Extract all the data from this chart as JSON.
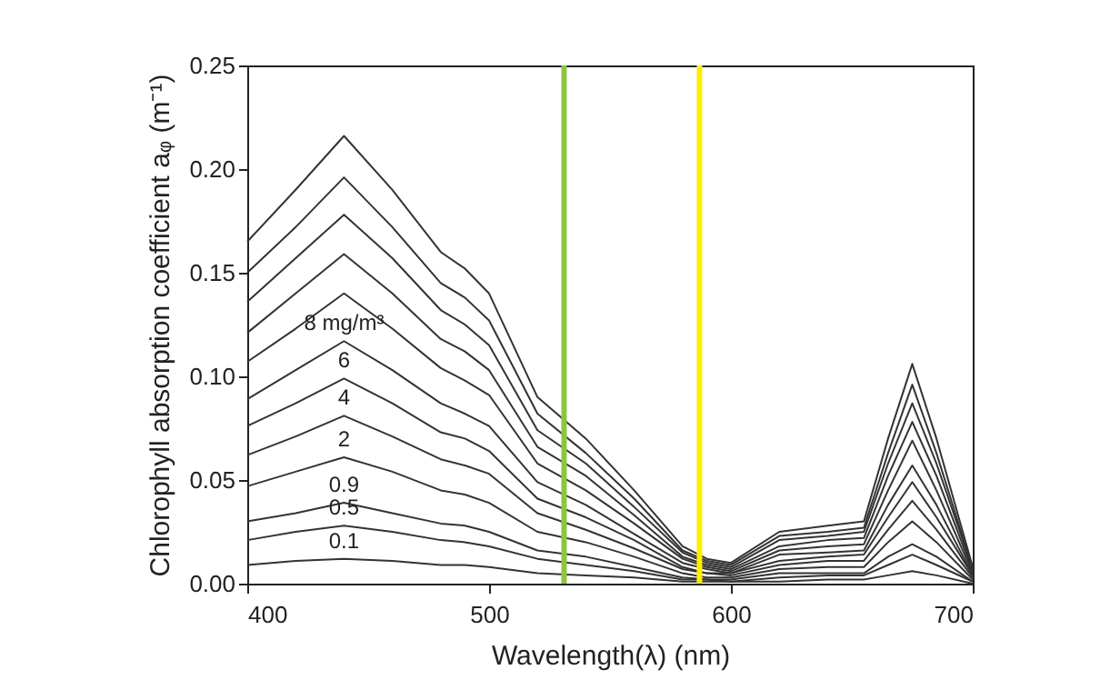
{
  "chart_data": {
    "type": "line",
    "xlabel": "Wavelength(λ) (nm)",
    "ylabel": "Chlorophyll absorption coefficient aᵩ (m⁻¹)",
    "x": [
      400,
      420,
      440,
      460,
      480,
      490,
      500,
      520,
      540,
      560,
      580,
      590,
      600,
      620,
      640,
      655,
      665,
      675,
      685,
      700
    ],
    "xlim": [
      400,
      700
    ],
    "xticks": [
      400,
      500,
      600,
      700
    ],
    "ylim": [
      0,
      0.25
    ],
    "yticks": [
      {
        "value": 0,
        "label": "0.00"
      },
      {
        "value": 0.05,
        "label": "0.05"
      },
      {
        "value": 0.1,
        "label": "0.10"
      },
      {
        "value": 0.15,
        "label": "0.15"
      },
      {
        "value": 0.2,
        "label": "0.20"
      },
      {
        "value": 0.25,
        "label": "0.25"
      }
    ],
    "grid": false,
    "legend": false,
    "marker": "none",
    "line_style": "solid",
    "series": [
      {
        "color": "#333333",
        "values": [
          0.165,
          0.19,
          0.216,
          0.19,
          0.16,
          0.152,
          0.14,
          0.09,
          0.07,
          0.045,
          0.018,
          0.012,
          0.01,
          0.025,
          0.028,
          0.03,
          0.07,
          0.106,
          0.07,
          0.008
        ]
      },
      {
        "color": "#333333",
        "values": [
          0.15,
          0.172,
          0.196,
          0.172,
          0.145,
          0.138,
          0.127,
          0.082,
          0.063,
          0.041,
          0.016,
          0.011,
          0.009,
          0.023,
          0.025,
          0.027,
          0.063,
          0.096,
          0.063,
          0.007
        ]
      },
      {
        "color": "#333333",
        "values": [
          0.136,
          0.157,
          0.178,
          0.157,
          0.132,
          0.125,
          0.115,
          0.074,
          0.058,
          0.037,
          0.015,
          0.01,
          0.008,
          0.021,
          0.023,
          0.025,
          0.058,
          0.087,
          0.058,
          0.007
        ]
      },
      {
        "color": "#333333",
        "values": [
          0.121,
          0.14,
          0.159,
          0.14,
          0.118,
          0.112,
          0.103,
          0.066,
          0.052,
          0.033,
          0.013,
          0.009,
          0.007,
          0.018,
          0.021,
          0.022,
          0.052,
          0.078,
          0.052,
          0.006
        ]
      },
      {
        "color": "#333333",
        "values": [
          0.107,
          0.123,
          0.14,
          0.123,
          0.104,
          0.098,
          0.091,
          0.058,
          0.045,
          0.029,
          0.012,
          0.008,
          0.006,
          0.016,
          0.018,
          0.019,
          0.045,
          0.069,
          0.045,
          0.005
        ]
      },
      {
        "name": "8 mg/m³",
        "color": "#333333",
        "values": [
          0.089,
          0.103,
          0.117,
          0.103,
          0.087,
          0.082,
          0.076,
          0.049,
          0.038,
          0.024,
          0.01,
          0.007,
          0.005,
          0.014,
          0.015,
          0.016,
          0.038,
          0.057,
          0.038,
          0.004
        ]
      },
      {
        "name": "6",
        "color": "#333333",
        "values": [
          0.076,
          0.087,
          0.099,
          0.087,
          0.073,
          0.07,
          0.064,
          0.041,
          0.032,
          0.021,
          0.008,
          0.005,
          0.005,
          0.011,
          0.013,
          0.014,
          0.032,
          0.049,
          0.032,
          0.004
        ]
      },
      {
        "name": "4",
        "color": "#333333",
        "values": [
          0.062,
          0.071,
          0.081,
          0.071,
          0.06,
          0.057,
          0.053,
          0.034,
          0.026,
          0.017,
          0.007,
          0.005,
          0.004,
          0.009,
          0.011,
          0.011,
          0.026,
          0.04,
          0.026,
          0.003
        ]
      },
      {
        "name": "2",
        "color": "#333333",
        "values": [
          0.047,
          0.054,
          0.061,
          0.054,
          0.045,
          0.043,
          0.039,
          0.025,
          0.02,
          0.013,
          0.005,
          0.003,
          0.003,
          0.007,
          0.008,
          0.008,
          0.02,
          0.03,
          0.02,
          0.002
        ]
      },
      {
        "name": "0.9",
        "color": "#333333",
        "values": [
          0.03,
          0.034,
          0.039,
          0.034,
          0.029,
          0.028,
          0.025,
          0.016,
          0.013,
          0.008,
          0.003,
          0.002,
          0.002,
          0.005,
          0.005,
          0.005,
          0.013,
          0.019,
          0.013,
          0.001
        ]
      },
      {
        "name": "0.5",
        "color": "#333333",
        "values": [
          0.021,
          0.025,
          0.028,
          0.025,
          0.021,
          0.02,
          0.018,
          0.012,
          0.009,
          0.006,
          0.002,
          0.002,
          0.001,
          0.003,
          0.004,
          0.004,
          0.009,
          0.014,
          0.009,
          0.001
        ]
      },
      {
        "name": "0.1",
        "color": "#333333",
        "values": [
          0.009,
          0.011,
          0.012,
          0.011,
          0.009,
          0.009,
          0.008,
          0.005,
          0.004,
          0.003,
          0.001,
          0.001,
          0.001,
          0.001,
          0.002,
          0.002,
          0.004,
          0.006,
          0.004,
          0
        ]
      }
    ],
    "ref_lines": [
      {
        "axis": "x",
        "value": 531,
        "color": "#8cc63f"
      },
      {
        "axis": "x",
        "value": 587,
        "color": "#ffee00"
      }
    ]
  }
}
